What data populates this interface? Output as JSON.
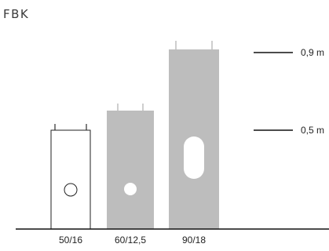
{
  "title": "FBK",
  "heights": [
    {
      "label": "0,9 m",
      "value": 0.9
    },
    {
      "label": "0,5 m",
      "value": 0.5
    }
  ],
  "units": [
    {
      "label": "50/16",
      "style": "outline",
      "hole": "circle"
    },
    {
      "label": "60/12,5",
      "style": "filled",
      "hole": "dot"
    },
    {
      "label": "90/18",
      "style": "filled",
      "hole": "slot"
    }
  ]
}
